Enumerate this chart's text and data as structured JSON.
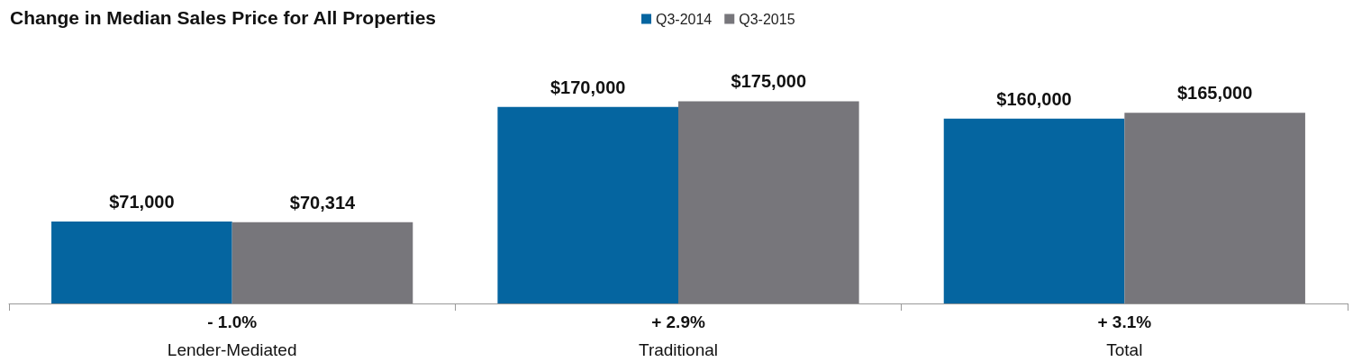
{
  "chart_data": {
    "type": "bar",
    "title": "Change in Median Sales Price for All Properties",
    "categories": [
      "Lender-Mediated",
      "Traditional",
      "Total"
    ],
    "series": [
      {
        "name": "Q3-2014",
        "color": "#0565a0",
        "values": [
          71000,
          170000,
          160000
        ],
        "value_labels": [
          "$71,000",
          "$170,000",
          "$160,000"
        ]
      },
      {
        "name": "Q3-2015",
        "color": "#77767b",
        "values": [
          70314,
          175000,
          165000
        ],
        "value_labels": [
          "$70,314",
          "$175,000",
          "$165,000"
        ]
      }
    ],
    "annotations": [
      "- 1.0%",
      "+ 2.9%",
      "+ 3.1%"
    ],
    "legend": "top"
  }
}
